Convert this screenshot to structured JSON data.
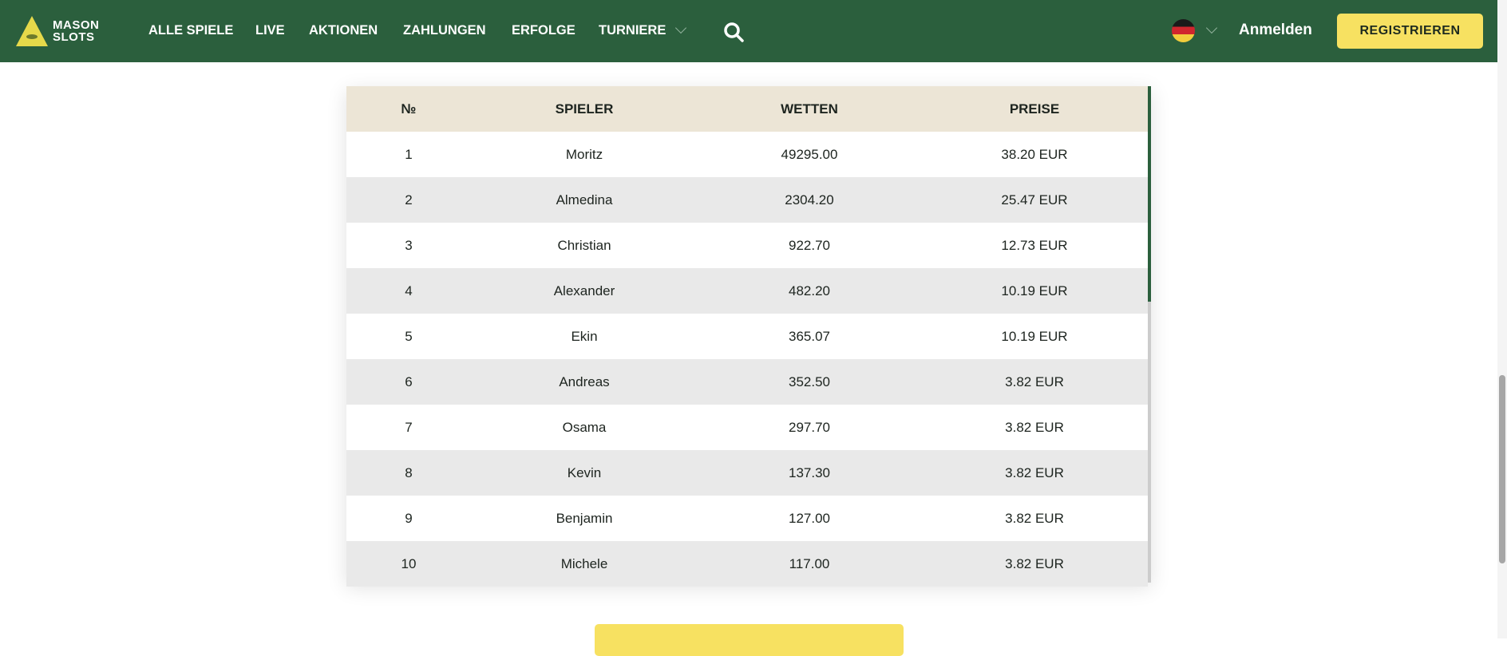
{
  "header": {
    "logo_line1": "MASON",
    "logo_line2": "SLOTS",
    "nav": [
      "ALLE SPIELE",
      "LIVE",
      "AKTIONEN",
      "ZAHLUNGEN",
      "ERFOLGE",
      "TURNIERE"
    ],
    "login": "Anmelden",
    "register": "REGISTRIEREN",
    "language": "de"
  },
  "table": {
    "headers": [
      "№",
      "SPIELER",
      "WETTEN",
      "PREISE"
    ],
    "rows": [
      [
        "1",
        "Moritz",
        "49295.00",
        "38.20 EUR"
      ],
      [
        "2",
        "Almedina",
        "2304.20",
        "25.47 EUR"
      ],
      [
        "3",
        "Christian",
        "922.70",
        "12.73 EUR"
      ],
      [
        "4",
        "Alexander",
        "482.20",
        "10.19 EUR"
      ],
      [
        "5",
        "Ekin",
        "365.07",
        "10.19 EUR"
      ],
      [
        "6",
        "Andreas",
        "352.50",
        "3.82 EUR"
      ],
      [
        "7",
        "Osama",
        "297.70",
        "3.82 EUR"
      ],
      [
        "8",
        "Kevin",
        "137.30",
        "3.82 EUR"
      ],
      [
        "9",
        "Benjamin",
        "127.00",
        "3.82 EUR"
      ],
      [
        "10",
        "Michele",
        "117.00",
        "3.82 EUR"
      ]
    ]
  },
  "colors": {
    "brand": "#2b5f3d",
    "accent": "#f7e161"
  }
}
